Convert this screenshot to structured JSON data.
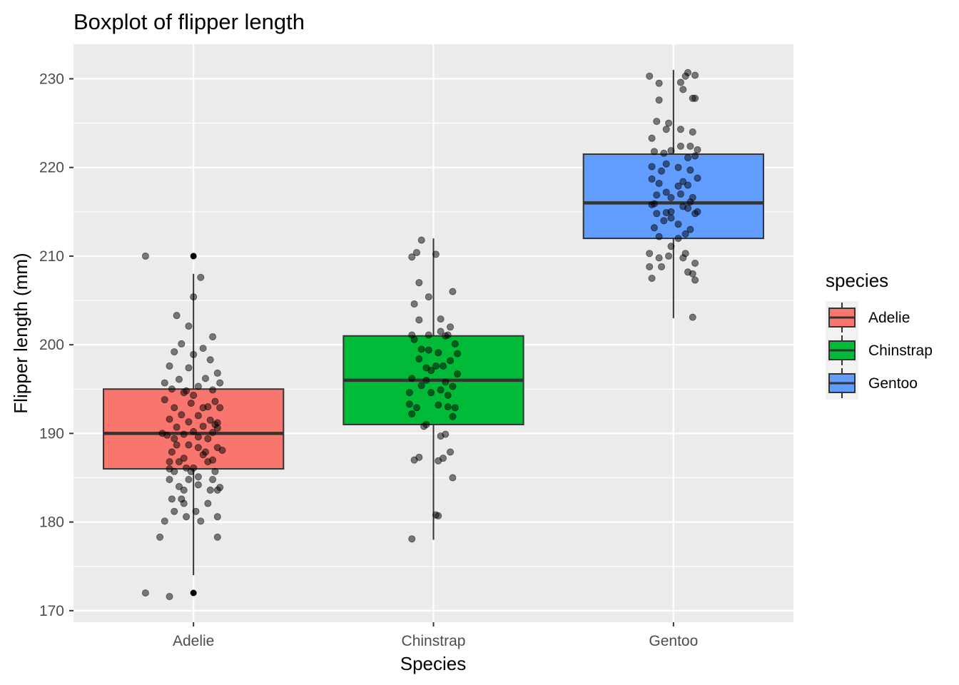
{
  "chart_data": {
    "type": "boxplot",
    "title": "Boxplot of flipper length",
    "xlabel": "Species",
    "ylabel": "Flipper length (mm)",
    "categories": [
      "Adelie",
      "Chinstrap",
      "Gentoo"
    ],
    "ylim": [
      168.7,
      233.9
    ],
    "y_ticks": [
      170,
      180,
      190,
      200,
      210,
      220,
      230
    ],
    "grid": true,
    "boxes": [
      {
        "name": "Adelie",
        "color": "#F8766D",
        "whisker_low": 174,
        "q1": 186,
        "median": 190,
        "q3": 195,
        "whisker_high": 208,
        "outliers": [
          172,
          210
        ]
      },
      {
        "name": "Chinstrap",
        "color": "#00BA38",
        "whisker_low": 178,
        "q1": 191,
        "median": 196,
        "q3": 201,
        "whisker_high": 212,
        "outliers": []
      },
      {
        "name": "Gentoo",
        "color": "#619CFF",
        "whisker_low": 203,
        "q1": 212,
        "median": 216,
        "q3": 221.5,
        "whisker_high": 231,
        "outliers": []
      }
    ],
    "points": {
      "Adelie": [
        [
          -0.2,
          210
        ],
        [
          -0.2,
          172
        ],
        [
          -0.1,
          171.6
        ],
        [
          -0.14,
          178.3
        ],
        [
          0.1,
          178.3
        ],
        [
          -0.12,
          180.1
        ],
        [
          0.03,
          180.1
        ],
        [
          0.1,
          180.6
        ],
        [
          -0.03,
          180.6
        ],
        [
          -0.08,
          181.2
        ],
        [
          0.01,
          181.2
        ],
        [
          -0.04,
          182.1
        ],
        [
          0.06,
          182.1
        ],
        [
          -0.09,
          182.6
        ],
        [
          -0.05,
          182.6
        ],
        [
          0.1,
          183.6
        ],
        [
          0.07,
          183.6
        ],
        [
          -0.04,
          183.6
        ],
        [
          0.11,
          183.9
        ],
        [
          0.02,
          184.2
        ],
        [
          -0.1,
          184.8
        ],
        [
          -0.02,
          184.8
        ],
        [
          0.08,
          184.8
        ],
        [
          0.02,
          185.1
        ],
        [
          0.09,
          185.7
        ],
        [
          -0.01,
          185.7
        ],
        [
          -0.08,
          185.7
        ],
        [
          -0.03,
          186.1
        ],
        [
          0.0,
          186.1
        ],
        [
          0.06,
          186.8
        ],
        [
          -0.1,
          186.8
        ],
        [
          -0.06,
          186.8
        ],
        [
          0.08,
          187.0
        ],
        [
          -0.04,
          187.2
        ],
        [
          0.05,
          187.9
        ],
        [
          -0.09,
          187.9
        ],
        [
          0.02,
          188.4
        ],
        [
          0.1,
          188.4
        ],
        [
          -0.07,
          188.7
        ],
        [
          -0.02,
          188.7
        ],
        [
          0.06,
          189.4
        ],
        [
          0.02,
          189.6
        ],
        [
          -0.11,
          189.8
        ],
        [
          -0.04,
          189.9
        ],
        [
          0.08,
          190.1
        ],
        [
          0.0,
          190.2
        ],
        [
          -0.07,
          190.7
        ],
        [
          0.04,
          190.8
        ],
        [
          0.1,
          191.2
        ],
        [
          -0.02,
          191.3
        ],
        [
          -0.1,
          191.6
        ],
        [
          0.07,
          191.5
        ],
        [
          0.02,
          192.0
        ],
        [
          -0.05,
          192.1
        ],
        [
          0.11,
          192.9
        ],
        [
          -0.08,
          192.9
        ],
        [
          0.04,
          192.9
        ],
        [
          -0.01,
          193.4
        ],
        [
          0.09,
          193.6
        ],
        [
          -0.12,
          193.8
        ],
        [
          0.0,
          194.3
        ],
        [
          -0.04,
          194.6
        ],
        [
          0.08,
          194.9
        ],
        [
          -0.09,
          195.0
        ],
        [
          0.02,
          195.3
        ],
        [
          0.11,
          195.7
        ],
        [
          -0.06,
          196.1
        ],
        [
          0.1,
          196.8
        ],
        [
          -0.02,
          197.4
        ],
        [
          -0.1,
          197.6
        ],
        [
          0.07,
          198.3
        ],
        [
          0.0,
          198.9
        ],
        [
          -0.08,
          199.2
        ],
        [
          0.04,
          199.6
        ],
        [
          -0.05,
          200.1
        ],
        [
          0.08,
          200.9
        ],
        [
          -0.02,
          202.1
        ],
        [
          -0.07,
          203.3
        ],
        [
          0.0,
          205.4
        ],
        [
          0.03,
          207.6
        ],
        [
          -0.12,
          195.7
        ],
        [
          0.09,
          191.0
        ],
        [
          -0.13,
          190.0
        ],
        [
          0.05,
          196.2
        ],
        [
          -0.1,
          186.0
        ],
        [
          0.12,
          188.1
        ],
        [
          -0.06,
          184.0
        ],
        [
          0.06,
          193.0
        ],
        [
          -0.03,
          194.8
        ],
        [
          0.1,
          190.6
        ],
        [
          -0.08,
          189.4
        ],
        [
          0.04,
          187.6
        ]
      ],
      "Chinstrap": [
        [
          -0.09,
          178.1
        ],
        [
          0.01,
          180.8
        ],
        [
          0.02,
          180.7
        ],
        [
          0.08,
          185.0
        ],
        [
          -0.08,
          187.0
        ],
        [
          0.04,
          187.2
        ],
        [
          -0.06,
          187.3
        ],
        [
          0.07,
          187.9
        ],
        [
          0.03,
          189.7
        ],
        [
          0.05,
          189.9
        ],
        [
          -0.03,
          191.0
        ],
        [
          -0.09,
          192.2
        ],
        [
          0.08,
          191.9
        ],
        [
          -0.07,
          192.9
        ],
        [
          0.06,
          193.0
        ],
        [
          0.02,
          193.2
        ],
        [
          -0.01,
          194.6
        ],
        [
          0.03,
          194.9
        ],
        [
          -0.1,
          194.6
        ],
        [
          -0.05,
          195.4
        ],
        [
          0.08,
          195.3
        ],
        [
          0.05,
          195.8
        ],
        [
          -0.09,
          196.2
        ],
        [
          0.1,
          196.7
        ],
        [
          -0.03,
          197.4
        ],
        [
          0.01,
          197.6
        ],
        [
          0.07,
          198.2
        ],
        [
          -0.06,
          198.4
        ],
        [
          0.02,
          199.1
        ],
        [
          -0.02,
          199.4
        ],
        [
          0.09,
          200.1
        ],
        [
          -0.08,
          200.6
        ],
        [
          -0.02,
          201.1
        ],
        [
          0.06,
          201.1
        ],
        [
          0.03,
          201.5
        ],
        [
          -0.09,
          201.1
        ],
        [
          0.07,
          202.0
        ],
        [
          -0.06,
          202.8
        ],
        [
          0.03,
          202.9
        ],
        [
          0.08,
          206.0
        ],
        [
          -0.02,
          205.4
        ],
        [
          -0.08,
          204.6
        ],
        [
          -0.06,
          207.0
        ],
        [
          0.01,
          210.2
        ],
        [
          -0.09,
          209.9
        ],
        [
          -0.07,
          210.4
        ],
        [
          -0.05,
          211.8
        ],
        [
          0.05,
          201.0
        ],
        [
          0.1,
          199.0
        ],
        [
          -0.01,
          197.1
        ],
        [
          0.06,
          194.3
        ],
        [
          -0.04,
          190.8
        ],
        [
          0.02,
          186.9
        ],
        [
          -0.1,
          193.3
        ],
        [
          0.09,
          192.9
        ],
        [
          -0.05,
          199.5
        ],
        [
          0.04,
          197.6
        ],
        [
          -0.03,
          196.0
        ]
      ],
      "Gentoo": [
        [
          -0.1,
          230.3
        ],
        [
          -0.06,
          229.5
        ],
        [
          0.05,
          230.3
        ],
        [
          0.06,
          230.7
        ],
        [
          0.09,
          230.4
        ],
        [
          0.03,
          229.6
        ],
        [
          0.04,
          228.8
        ],
        [
          -0.06,
          227.6
        ],
        [
          0.08,
          227.8
        ],
        [
          0.09,
          227.8
        ],
        [
          -0.07,
          225.2
        ],
        [
          -0.02,
          225.0
        ],
        [
          -0.03,
          224.3
        ],
        [
          0.03,
          224.3
        ],
        [
          -0.09,
          223.3
        ],
        [
          0.08,
          224.0
        ],
        [
          0.1,
          222.0
        ],
        [
          0.07,
          222.4
        ],
        [
          -0.04,
          221.6
        ],
        [
          -0.08,
          221.8
        ],
        [
          -0.01,
          221.9
        ],
        [
          0.03,
          222.4
        ],
        [
          0.06,
          221.1
        ],
        [
          0.09,
          221.3
        ],
        [
          -0.03,
          220.4
        ],
        [
          -0.09,
          220.1
        ],
        [
          0.02,
          220.0
        ],
        [
          -0.05,
          219.6
        ],
        [
          0.07,
          219.7
        ],
        [
          -0.09,
          218.7
        ],
        [
          0.1,
          218.8
        ],
        [
          0.04,
          218.4
        ],
        [
          -0.06,
          218.2
        ],
        [
          0.02,
          217.9
        ],
        [
          -0.03,
          217.2
        ],
        [
          -0.01,
          216.6
        ],
        [
          0.08,
          216.6
        ],
        [
          -0.09,
          215.8
        ],
        [
          0.04,
          215.6
        ],
        [
          0.06,
          215.4
        ],
        [
          -0.07,
          214.8
        ],
        [
          0.09,
          214.8
        ],
        [
          -0.01,
          214.3
        ],
        [
          -0.04,
          214.0
        ],
        [
          0.02,
          213.6
        ],
        [
          -0.08,
          213.2
        ],
        [
          0.07,
          213.0
        ],
        [
          0.05,
          212.5
        ],
        [
          0.02,
          212.0
        ],
        [
          -0.06,
          212.2
        ],
        [
          -0.01,
          211.1
        ],
        [
          0.05,
          210.3
        ],
        [
          -0.1,
          210.3
        ],
        [
          -0.02,
          210.0
        ],
        [
          0.04,
          209.8
        ],
        [
          -0.06,
          209.8
        ],
        [
          0.09,
          209.2
        ],
        [
          -0.05,
          208.8
        ],
        [
          -0.1,
          208.8
        ],
        [
          0.06,
          208.2
        ],
        [
          0.08,
          208.0
        ],
        [
          -0.09,
          207.5
        ],
        [
          0.09,
          207.3
        ],
        [
          0.08,
          203.1
        ],
        [
          -0.01,
          215.0
        ],
        [
          0.03,
          217.0
        ],
        [
          0.07,
          216.1
        ],
        [
          -0.07,
          216.9
        ],
        [
          0.06,
          218.0
        ],
        [
          -0.03,
          214.9
        ],
        [
          0.1,
          215.0
        ],
        [
          -0.08,
          215.9
        ]
      ]
    }
  },
  "legend": {
    "title": "species",
    "items": [
      {
        "label": "Adelie",
        "color": "#F8766D"
      },
      {
        "label": "Chinstrap",
        "color": "#00BA38"
      },
      {
        "label": "Gentoo",
        "color": "#619CFF"
      }
    ]
  }
}
